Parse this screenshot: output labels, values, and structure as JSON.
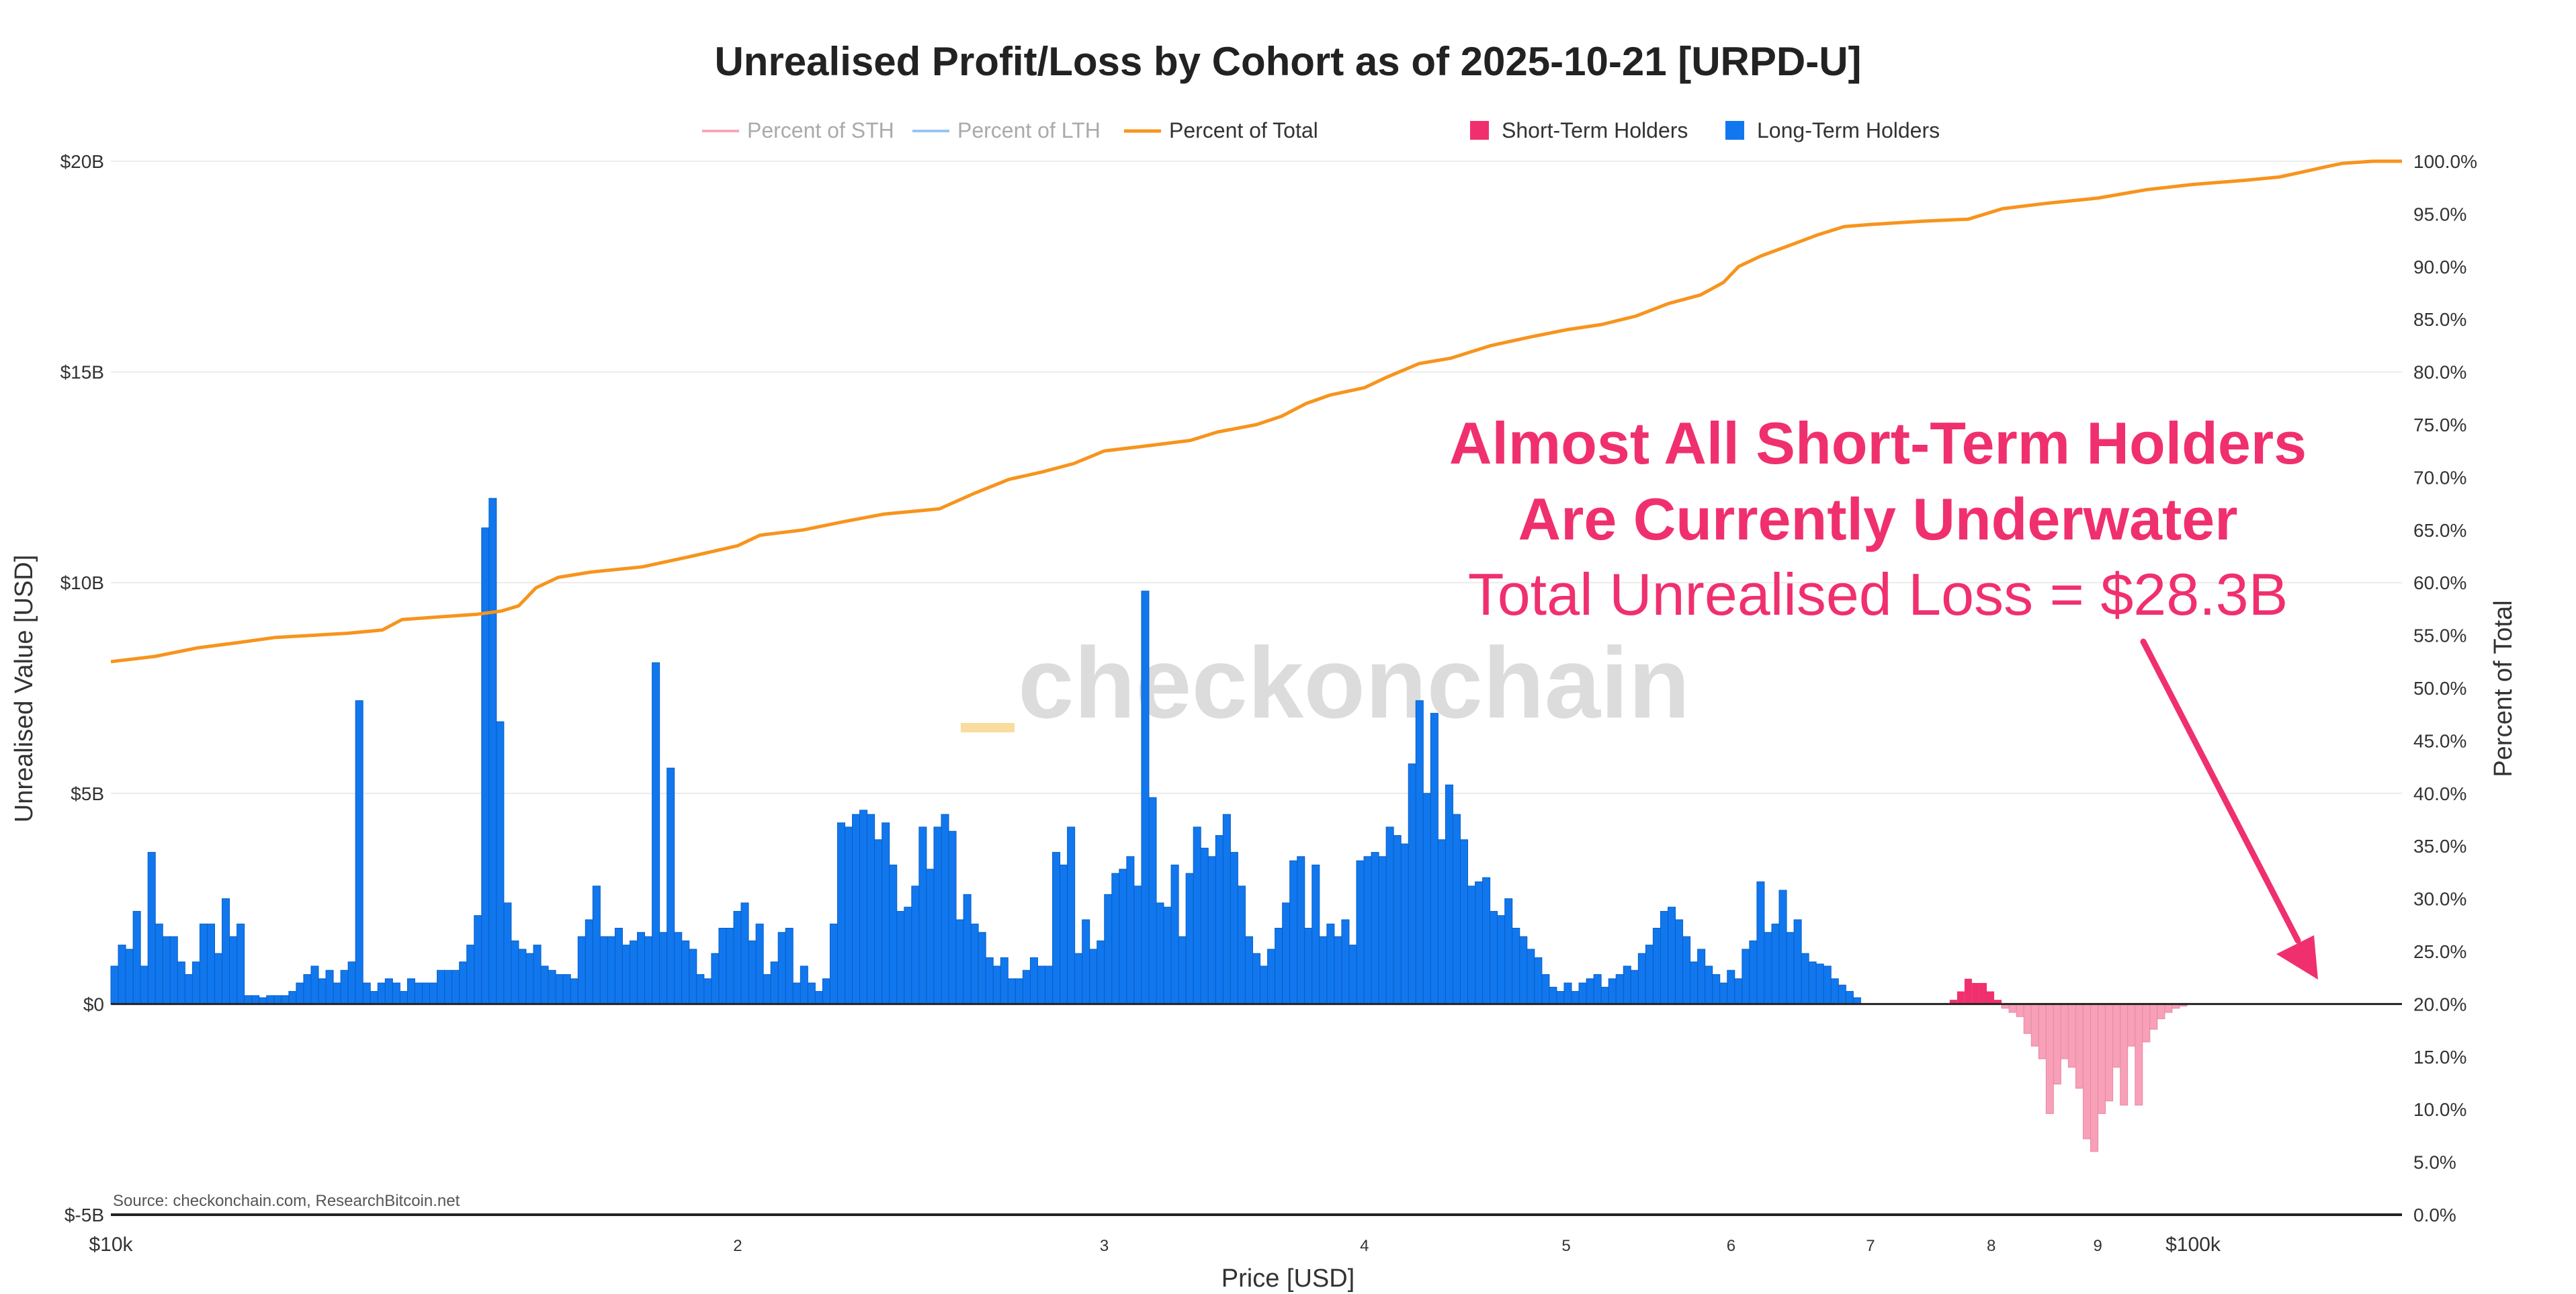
{
  "title": "Unrealised Profit/Loss by Cohort as of 2025-10-21 [URPD-U]",
  "legend": {
    "sth_pct": "Percent of STH",
    "lth_pct": "Percent of LTH",
    "total_pct": "Percent of Total",
    "sth": "Short-Term Holders",
    "lth": "Long-Term Holders"
  },
  "annotation": {
    "line1": "Almost All Short-Term Holders",
    "line2": "Are Currently Underwater",
    "line3": "Total Unrealised Loss = $28.3B"
  },
  "watermark": "checkonchain",
  "source": "Source: checkonchain.com, ResearchBitcoin.net",
  "colors": {
    "lth": "#1177ee",
    "sth": "#f0306e",
    "sth_loss": "#f7a0b8",
    "total_line": "#f7941d",
    "sth_line": "#f7a6bb",
    "lth_line": "#9cc3f5",
    "annotation": "#f0306e",
    "grid": "#ececec"
  },
  "chart_data": {
    "type": "bar",
    "title": "Unrealised Profit/Loss by Cohort as of 2025-10-21 [URPD-U]",
    "xlabel": "Price [USD]",
    "ylabel": "Unrealised Value [USD]",
    "y2label": "Percent of Total",
    "x_scale": "log",
    "xlim": [
      10000,
      126000
    ],
    "ylim": [
      -5,
      20
    ],
    "y2lim": [
      0,
      100
    ],
    "x_tick_labels": [
      {
        "value": 10000,
        "label": "$10k"
      },
      {
        "value": 20000,
        "label": "2"
      },
      {
        "value": 30000,
        "label": "3"
      },
      {
        "value": 40000,
        "label": "4"
      },
      {
        "value": 50000,
        "label": "5"
      },
      {
        "value": 60000,
        "label": "6"
      },
      {
        "value": 70000,
        "label": "7"
      },
      {
        "value": 80000,
        "label": "8"
      },
      {
        "value": 90000,
        "label": "9"
      },
      {
        "value": 100000,
        "label": "$100k"
      }
    ],
    "y_tick_labels": [
      {
        "value": 20,
        "label": "$20B"
      },
      {
        "value": 15,
        "label": "$15B"
      },
      {
        "value": 10,
        "label": "$10B"
      },
      {
        "value": 5,
        "label": "$5B"
      },
      {
        "value": 0,
        "label": "$0"
      },
      {
        "value": -5,
        "label": "$-5B"
      }
    ],
    "y2_tick_labels": [
      "0.0%",
      "5.0%",
      "10.0%",
      "15.0%",
      "20.0%",
      "25.0%",
      "30.0%",
      "35.0%",
      "40.0%",
      "45.0%",
      "50.0%",
      "55.0%",
      "60.0%",
      "65.0%",
      "70.0%",
      "75.0%",
      "80.0%",
      "85.0%",
      "90.0%",
      "95.0%",
      "100.0%"
    ],
    "bin_start_price": 10000,
    "bin_end_price": 126000,
    "series": [
      {
        "name": "Long-Term Holders",
        "unit": "USD billions",
        "values": [
          0.9,
          1.4,
          1.3,
          2.2,
          0.9,
          3.6,
          1.9,
          1.6,
          1.6,
          1.0,
          0.7,
          1.0,
          1.9,
          1.9,
          1.2,
          2.5,
          1.6,
          1.9,
          0.2,
          0.2,
          0.15,
          0.2,
          0.2,
          0.2,
          0.3,
          0.5,
          0.7,
          0.9,
          0.6,
          0.8,
          0.5,
          0.8,
          1.0,
          7.2,
          0.5,
          0.3,
          0.5,
          0.6,
          0.5,
          0.3,
          0.6,
          0.5,
          0.5,
          0.5,
          0.8,
          0.8,
          0.8,
          1.0,
          1.4,
          2.1,
          11.3,
          12.0,
          6.7,
          2.4,
          1.5,
          1.3,
          1.2,
          1.4,
          0.9,
          0.8,
          0.7,
          0.7,
          0.6,
          1.6,
          2.0,
          2.8,
          1.6,
          1.6,
          1.8,
          1.4,
          1.5,
          1.7,
          1.6,
          8.1,
          1.7,
          5.6,
          1.7,
          1.5,
          1.3,
          0.7,
          0.6,
          1.2,
          1.8,
          1.8,
          2.2,
          2.4,
          1.5,
          1.9,
          0.7,
          1.0,
          1.7,
          1.8,
          0.5,
          0.9,
          0.5,
          0.3,
          0.6,
          1.9,
          4.3,
          4.2,
          4.5,
          4.6,
          4.5,
          3.9,
          4.3,
          3.3,
          2.2,
          2.3,
          2.8,
          4.2,
          3.2,
          4.2,
          4.5,
          4.1,
          2.0,
          2.6,
          1.9,
          1.7,
          1.1,
          0.9,
          1.1,
          0.6,
          0.6,
          0.8,
          1.1,
          0.9,
          0.9,
          3.6,
          3.3,
          4.2,
          1.2,
          2.0,
          1.3,
          1.5,
          2.6,
          3.1,
          3.2,
          3.5,
          2.8,
          9.8,
          4.9,
          2.4,
          2.3,
          3.3,
          1.6,
          3.1,
          4.2,
          3.7,
          3.5,
          4.0,
          4.5,
          3.6,
          2.8,
          1.6,
          1.2,
          0.9,
          1.3,
          1.8,
          2.4,
          3.4,
          3.5,
          1.8,
          3.3,
          1.6,
          1.9,
          1.6,
          2.0,
          1.4,
          3.4,
          3.5,
          3.6,
          3.5,
          4.2,
          4.0,
          3.8,
          5.7,
          7.2,
          5.0,
          6.9,
          3.9,
          5.2,
          4.5,
          3.9,
          2.8,
          2.9,
          3.0,
          2.2,
          2.1,
          2.5,
          1.8,
          1.6,
          1.3,
          1.1,
          0.7,
          0.4,
          0.3,
          0.5,
          0.3,
          0.5,
          0.6,
          0.7,
          0.4,
          0.6,
          0.7,
          0.9,
          0.8,
          1.2,
          1.4,
          1.8,
          2.2,
          2.3,
          2.0,
          1.6,
          1.0,
          1.3,
          0.9,
          0.7,
          0.5,
          0.8,
          0.6,
          1.3,
          1.5,
          2.9,
          1.7,
          1.9,
          2.7,
          1.7,
          2.0,
          1.2,
          1.0,
          0.95,
          0.9,
          0.6,
          0.45,
          0.3,
          0.15,
          0,
          0,
          0,
          0,
          0,
          0,
          0,
          0,
          0,
          0,
          0,
          0,
          0,
          0,
          0,
          0,
          0,
          0,
          0,
          0,
          0,
          0,
          0,
          0,
          0,
          0,
          0,
          0,
          0,
          0,
          0,
          0,
          0,
          0,
          0,
          0,
          0,
          0,
          0,
          0,
          0,
          0,
          0,
          0,
          0,
          0,
          0,
          0,
          0,
          0,
          0,
          0,
          0,
          0,
          0,
          0,
          0,
          0,
          0,
          0,
          0,
          0,
          0,
          0,
          0,
          0,
          0,
          0,
          0,
          0,
          0,
          0,
          0
        ]
      },
      {
        "name": "Short-Term Holders",
        "unit": "USD billions",
        "values": [
          0,
          0,
          0,
          0,
          0,
          0,
          0,
          0,
          0,
          0,
          0,
          0,
          0,
          0,
          0,
          0,
          0,
          0,
          0,
          0,
          0,
          0,
          0,
          0,
          0,
          0,
          0,
          0,
          0,
          0,
          0,
          0,
          0,
          0,
          0,
          0,
          0,
          0,
          0,
          0,
          0,
          0,
          0,
          0,
          0,
          0,
          0,
          0,
          0,
          0,
          0,
          0,
          0,
          0,
          0,
          0,
          0,
          0,
          0,
          0,
          0,
          0,
          0,
          0,
          0,
          0,
          0,
          0,
          0,
          0,
          0,
          0,
          0,
          0,
          0,
          0,
          0,
          0,
          0,
          0,
          0,
          0,
          0,
          0,
          0,
          0,
          0,
          0,
          0,
          0,
          0,
          0,
          0,
          0,
          0,
          0,
          0,
          0,
          0,
          0,
          0,
          0,
          0,
          0,
          0,
          0,
          0,
          0,
          0,
          0,
          0,
          0,
          0,
          0,
          0,
          0,
          0,
          0,
          0,
          0,
          0,
          0,
          0,
          0,
          0,
          0,
          0,
          0,
          0,
          0,
          0,
          0,
          0,
          0,
          0,
          0,
          0,
          0,
          0,
          0,
          0,
          0,
          0,
          0,
          0,
          0,
          0,
          0,
          0,
          0,
          0,
          0,
          0,
          0,
          0,
          0,
          0,
          0,
          0,
          0,
          0,
          0,
          0,
          0,
          0,
          0,
          0,
          0,
          0,
          0,
          0,
          0,
          0,
          0,
          0,
          0,
          0,
          0,
          0,
          0,
          0,
          0,
          0,
          0,
          0,
          0,
          0,
          0,
          0,
          0,
          0,
          0,
          0,
          0,
          0,
          0,
          0,
          0,
          0,
          0,
          0,
          0,
          0,
          0,
          0,
          0,
          0,
          0,
          0,
          0,
          0,
          0,
          0,
          0,
          0,
          0,
          0,
          0,
          0,
          0,
          0,
          0,
          0,
          0,
          0,
          0,
          0,
          0,
          0,
          0,
          0,
          0,
          0,
          0,
          0,
          0,
          0,
          0,
          0,
          0,
          0,
          0,
          0,
          0,
          0,
          0,
          0,
          0,
          0.1,
          0.3,
          0.6,
          0.5,
          0.5,
          0.3,
          0.1,
          -0.1,
          -0.2,
          -0.3,
          -0.7,
          -1.0,
          -1.3,
          -2.6,
          -1.9,
          -1.3,
          -1.5,
          -2.0,
          -3.2,
          -3.5,
          -2.6,
          -2.3,
          -1.5,
          -2.4,
          -1.0,
          -2.4,
          -0.9,
          -0.6,
          -0.35,
          -0.2,
          -0.1,
          -0.05,
          0,
          0,
          0,
          0,
          0,
          0,
          0,
          0,
          0
        ]
      },
      {
        "name": "Percent of Total",
        "unit": "percent",
        "points": [
          [
            10000,
            52.5
          ],
          [
            10500,
            53.0
          ],
          [
            11000,
            53.8
          ],
          [
            11500,
            54.3
          ],
          [
            12000,
            54.8
          ],
          [
            12500,
            55.0
          ],
          [
            13000,
            55.2
          ],
          [
            13500,
            55.5
          ],
          [
            13800,
            56.5
          ],
          [
            14500,
            56.8
          ],
          [
            15000,
            57.0
          ],
          [
            15400,
            57.3
          ],
          [
            15700,
            57.8
          ],
          [
            16000,
            59.5
          ],
          [
            16400,
            60.5
          ],
          [
            17000,
            61.0
          ],
          [
            18000,
            61.5
          ],
          [
            19000,
            62.5
          ],
          [
            20000,
            63.5
          ],
          [
            20500,
            64.5
          ],
          [
            21500,
            65.0
          ],
          [
            22500,
            65.8
          ],
          [
            23500,
            66.5
          ],
          [
            25000,
            67.0
          ],
          [
            26000,
            68.5
          ],
          [
            27000,
            69.8
          ],
          [
            28000,
            70.5
          ],
          [
            29000,
            71.3
          ],
          [
            30000,
            72.5
          ],
          [
            31500,
            73.0
          ],
          [
            33000,
            73.5
          ],
          [
            34000,
            74.3
          ],
          [
            35500,
            75.0
          ],
          [
            36500,
            75.8
          ],
          [
            37500,
            77.0
          ],
          [
            38500,
            77.8
          ],
          [
            40000,
            78.5
          ],
          [
            41000,
            79.5
          ],
          [
            42500,
            80.8
          ],
          [
            44000,
            81.3
          ],
          [
            46000,
            82.5
          ],
          [
            48000,
            83.3
          ],
          [
            50000,
            84.0
          ],
          [
            52000,
            84.5
          ],
          [
            54000,
            85.3
          ],
          [
            56000,
            86.5
          ],
          [
            58000,
            87.3
          ],
          [
            59500,
            88.5
          ],
          [
            60500,
            90.0
          ],
          [
            62000,
            91.0
          ],
          [
            64000,
            92.0
          ],
          [
            66000,
            93.0
          ],
          [
            68000,
            93.8
          ],
          [
            70000,
            94.0
          ],
          [
            74000,
            94.3
          ],
          [
            78000,
            94.5
          ],
          [
            81000,
            95.5
          ],
          [
            85000,
            96.0
          ],
          [
            90000,
            96.5
          ],
          [
            95000,
            97.3
          ],
          [
            100000,
            97.8
          ],
          [
            106000,
            98.2
          ],
          [
            110000,
            98.5
          ],
          [
            113000,
            99.0
          ],
          [
            116000,
            99.5
          ],
          [
            118000,
            99.8
          ],
          [
            122000,
            100.0
          ],
          [
            126000,
            100.0
          ]
        ]
      },
      {
        "name": "Percent of STH",
        "unit": "percent",
        "points": []
      },
      {
        "name": "Percent of LTH",
        "unit": "percent",
        "points": []
      }
    ]
  }
}
